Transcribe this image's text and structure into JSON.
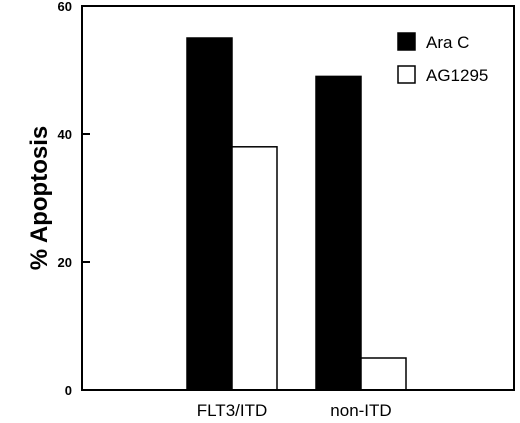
{
  "chart_data": {
    "type": "bar",
    "title": "",
    "xlabel": "",
    "ylabel": "% Apoptosis",
    "ylim": [
      0,
      60
    ],
    "yticks": [
      0,
      20,
      40,
      60
    ],
    "grid": false,
    "legend_position": "top-right",
    "categories": [
      "FLT3/ITD",
      "non-ITD"
    ],
    "series": [
      {
        "name": "Ara C",
        "values": [
          55,
          49
        ],
        "color": "#000000"
      },
      {
        "name": "AG1295",
        "values": [
          38,
          5
        ],
        "color": "#ffffff"
      }
    ]
  }
}
